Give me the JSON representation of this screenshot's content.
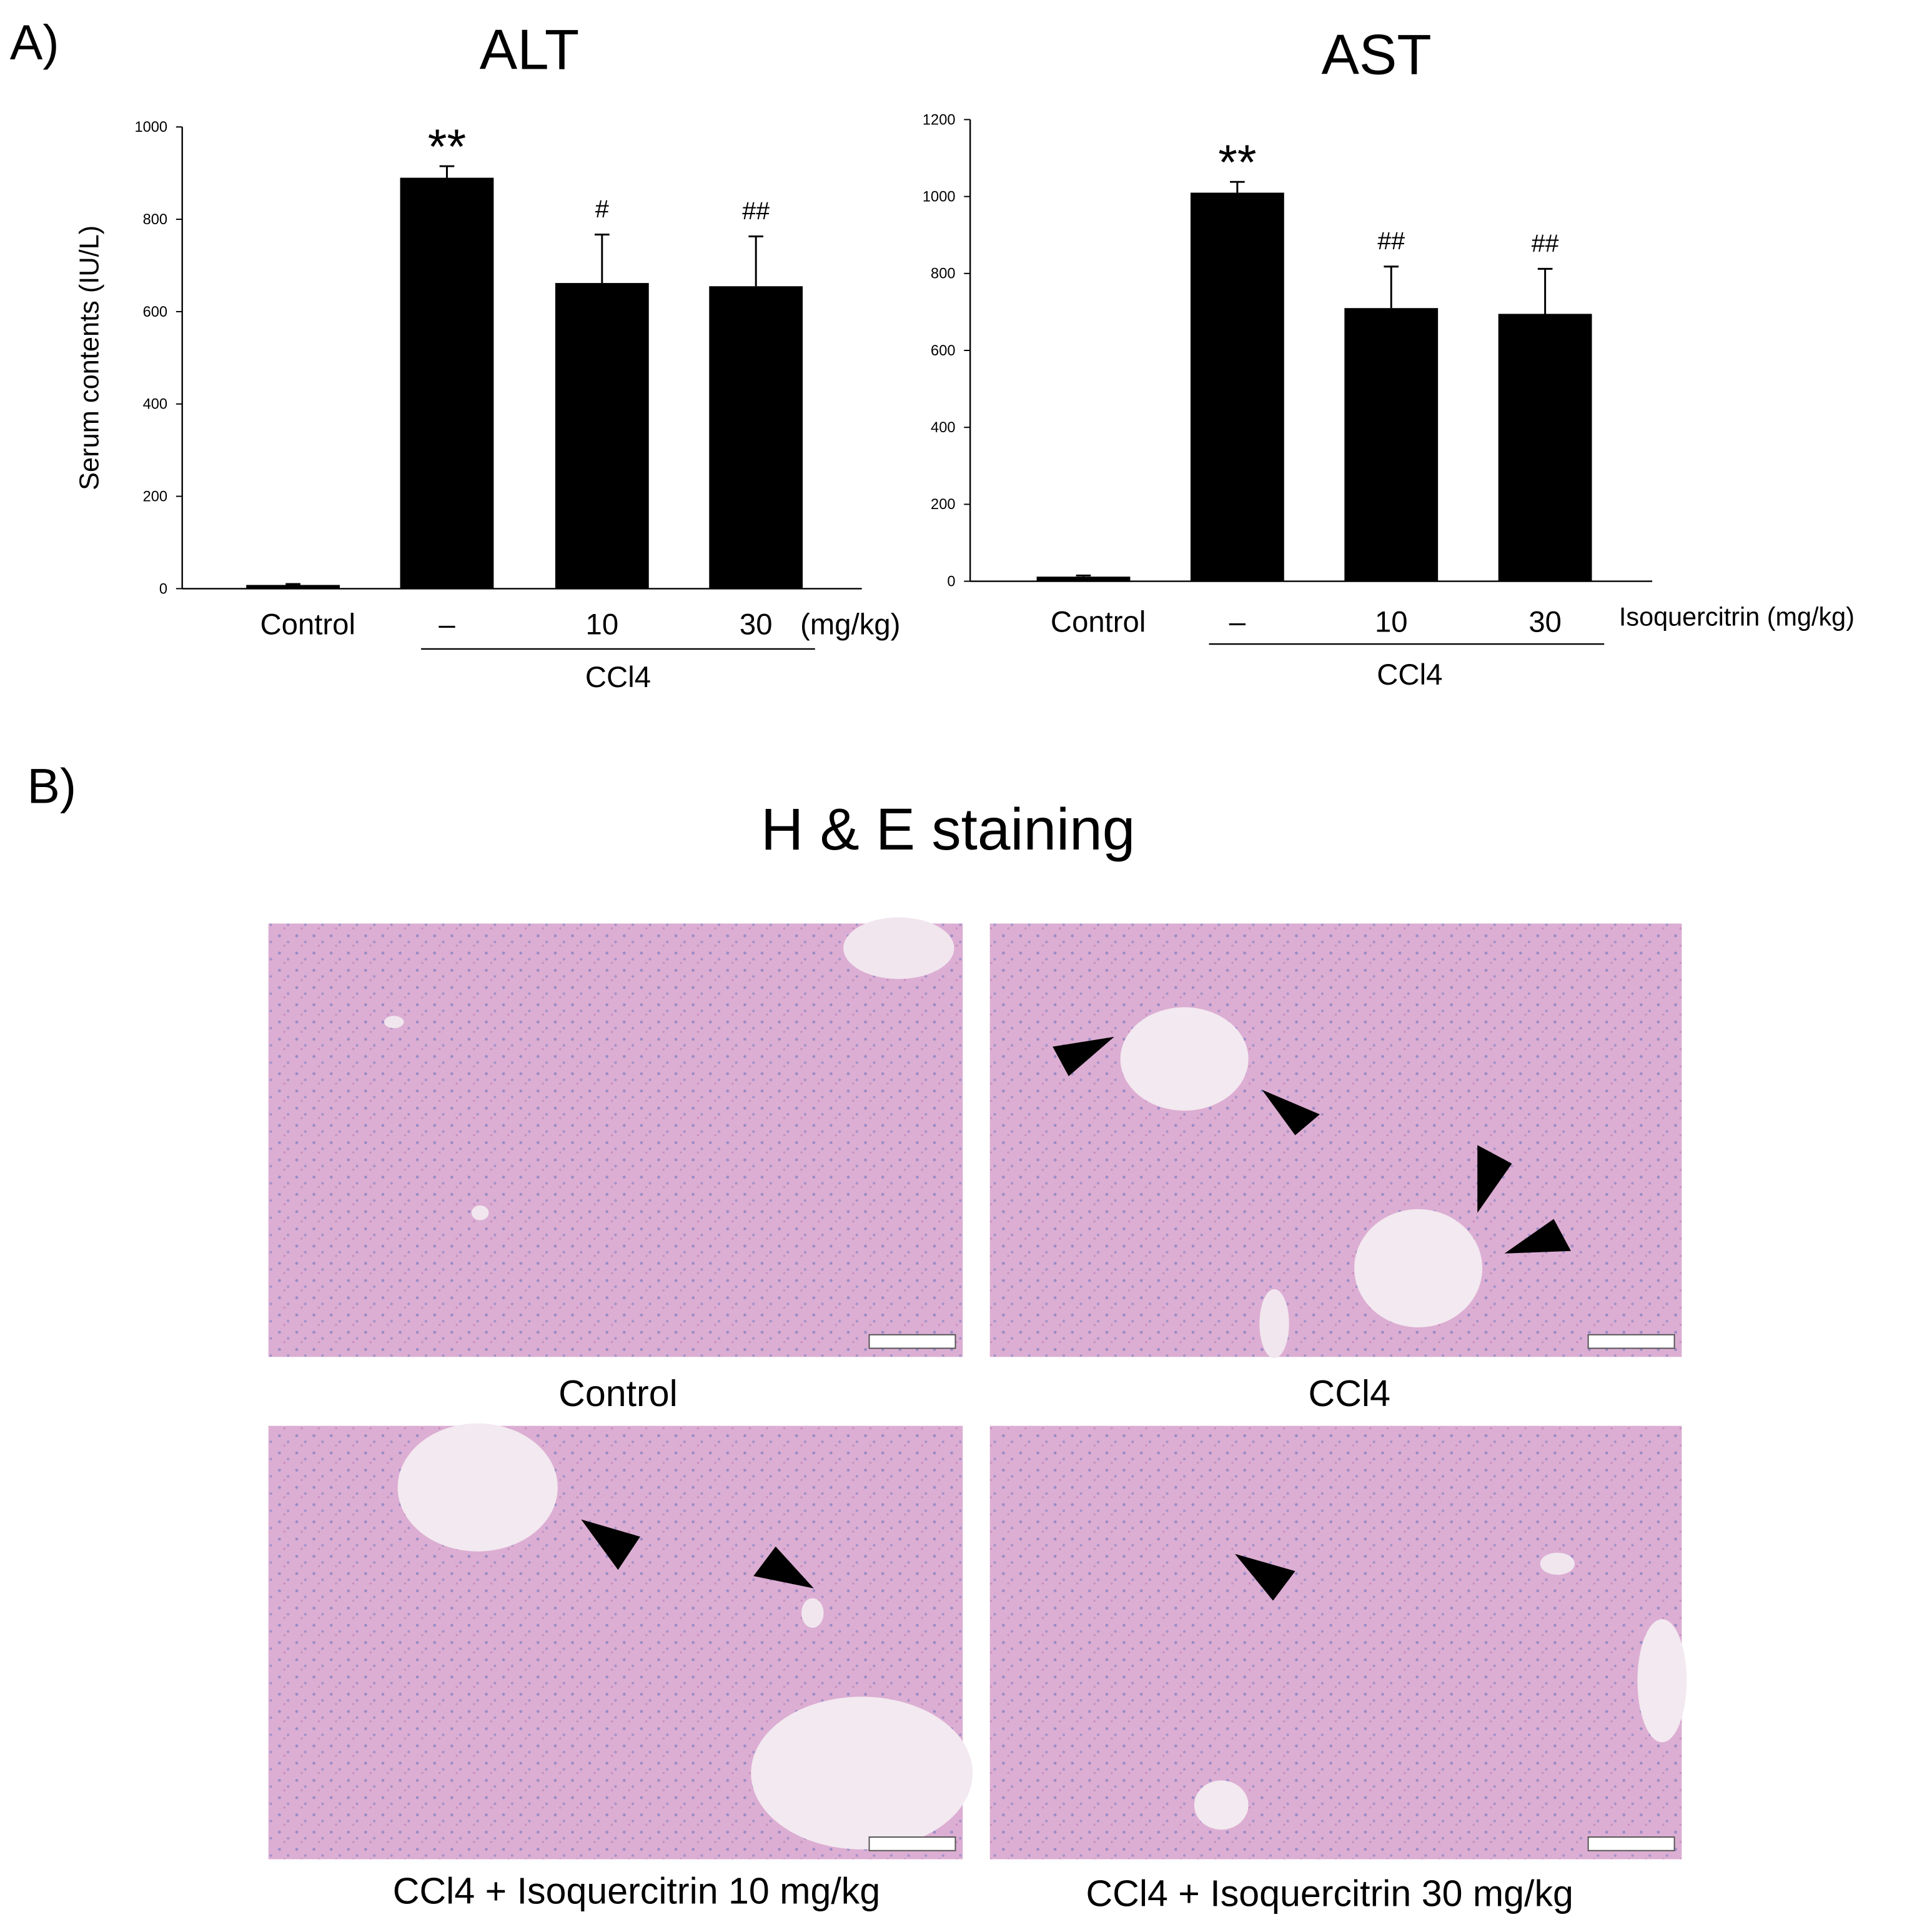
{
  "panel_a": {
    "label": "A)"
  },
  "chart_data": [
    {
      "type": "bar",
      "title": "ALT",
      "y_label": "Serum contents (IU/L)",
      "categories": [
        "Control",
        "–",
        "10",
        "30"
      ],
      "values": [
        8,
        890,
        662,
        655
      ],
      "errors": [
        2,
        25,
        105,
        108
      ],
      "annotations": [
        null,
        "**",
        "#",
        "##"
      ],
      "color": "#000000",
      "ylim": [
        0,
        1000
      ],
      "yticks": [
        0,
        200,
        400,
        600,
        800,
        1000
      ],
      "x_unit_label": "(mg/kg)",
      "group_label": "CCl4"
    },
    {
      "type": "bar",
      "title": "AST",
      "categories": [
        "Control",
        "–",
        "10",
        "30"
      ],
      "values": [
        12,
        1010,
        710,
        695
      ],
      "errors": [
        3,
        28,
        108,
        117
      ],
      "annotations": [
        null,
        "**",
        "##",
        "##"
      ],
      "color": "#000000",
      "ylim": [
        0,
        1200
      ],
      "yticks": [
        0,
        200,
        400,
        600,
        800,
        1000,
        1200
      ],
      "x_unit_label": "Isoquercitrin (mg/kg)",
      "group_label": "CCl4"
    }
  ],
  "panel_b": {
    "label": "B)",
    "title": "H & E staining",
    "images": [
      {
        "caption": "Control"
      },
      {
        "caption": "CCl4"
      },
      {
        "caption": "CCl4 + Isoquercitrin 10 mg/kg"
      },
      {
        "caption": "CCl4 + Isoquercitrin 30 mg/kg"
      }
    ]
  }
}
